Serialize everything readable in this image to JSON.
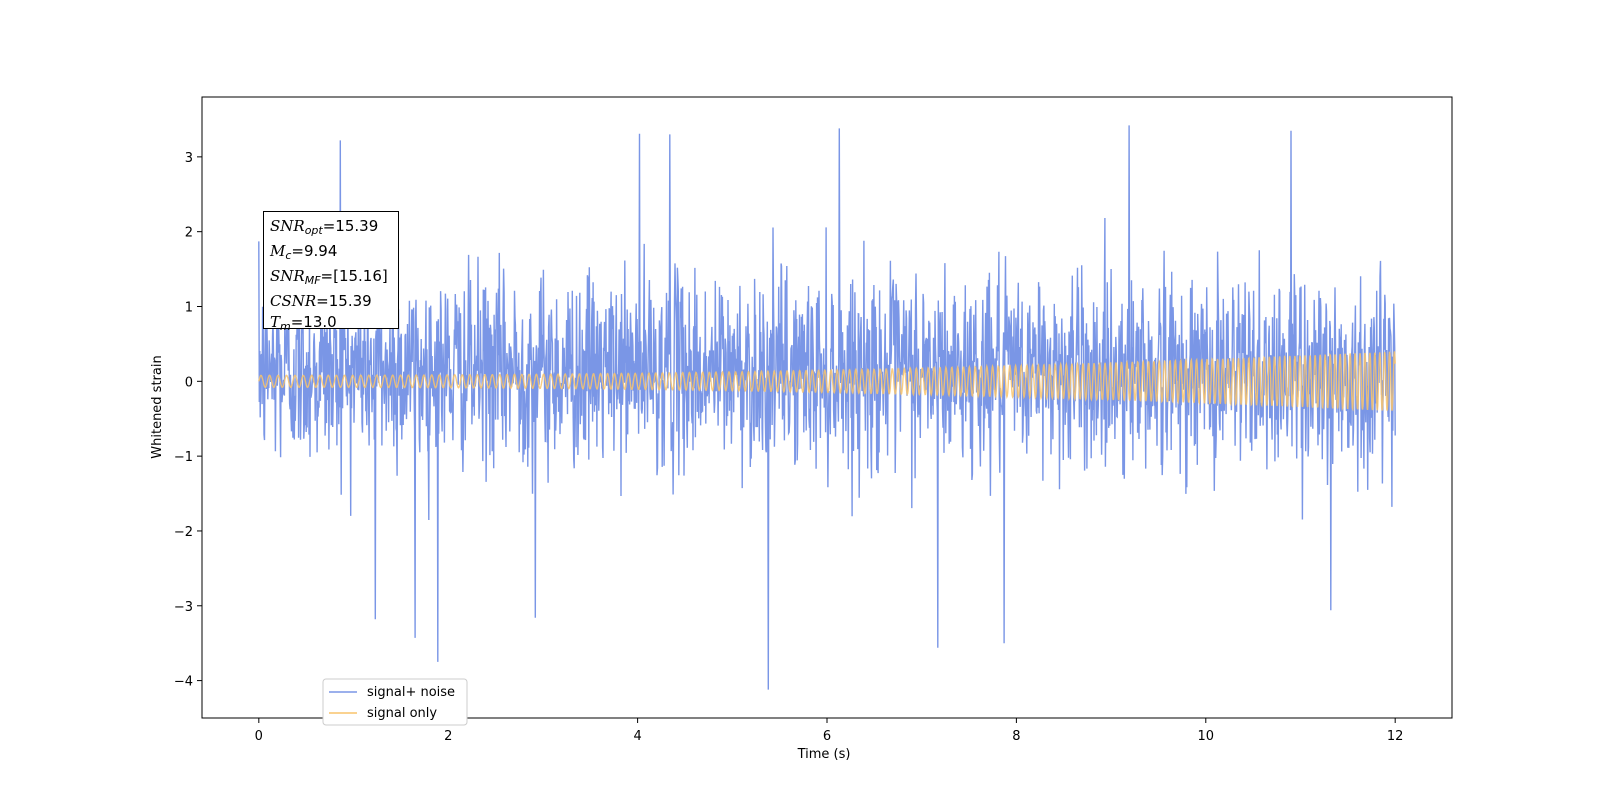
{
  "chart_data": {
    "type": "line",
    "title": "",
    "xlabel": "Time (s)",
    "ylabel": "Whitened strain",
    "xlim": [
      -0.6,
      12.6
    ],
    "ylim": [
      -4.5,
      3.8
    ],
    "x_ticks": [
      0,
      2,
      4,
      6,
      8,
      10,
      12
    ],
    "x_tick_labels": [
      "0",
      "2",
      "4",
      "6",
      "8",
      "10",
      "12"
    ],
    "y_ticks": [
      -4,
      -3,
      -2,
      -1,
      0,
      1,
      2,
      3
    ],
    "y_tick_labels": [
      "−4",
      "−3",
      "−2",
      "−1",
      "0",
      "1",
      "2",
      "3"
    ],
    "grid": false,
    "legend_position": "lower-left",
    "series": [
      {
        "name": "signal+ noise",
        "color": "#7a96e6",
        "description_values": {
          "x_range": [
            0,
            12
          ],
          "typical_envelope": [
            -1.5,
            2.0
          ],
          "peaks": [
            {
              "x": 0.86,
              "y": 3.22
            },
            {
              "x": 6.13,
              "y": 3.38
            },
            {
              "x": 9.19,
              "y": 3.42
            },
            {
              "x": 10.9,
              "y": 3.35
            },
            {
              "x": 4.02,
              "y": 3.31
            },
            {
              "x": 4.34,
              "y": 3.3
            }
          ],
          "troughs": [
            {
              "x": 5.38,
              "y": -4.12
            },
            {
              "x": 1.89,
              "y": -3.75
            },
            {
              "x": 1.65,
              "y": -3.43
            },
            {
              "x": 7.17,
              "y": -3.56
            },
            {
              "x": 7.87,
              "y": -3.5
            },
            {
              "x": 11.32,
              "y": -3.06
            },
            {
              "x": 1.23,
              "y": -3.18
            },
            {
              "x": 2.92,
              "y": -3.16
            }
          ]
        }
      },
      {
        "name": "signal only",
        "color": "#f9c46b",
        "description_values": {
          "x_range": [
            0,
            12
          ],
          "amplitude_start": 0.08,
          "amplitude_end": 0.4,
          "frequency_trend": "increasing"
        }
      }
    ],
    "annotations": [
      {
        "label": "SNR",
        "sub": "opt",
        "value": "=15.39"
      },
      {
        "label": "M",
        "sub": "c",
        "value": "=9.94"
      },
      {
        "label": "SNR",
        "sub": "MF",
        "value": "=[15.16]"
      },
      {
        "label": "CSNR",
        "sub": "",
        "value": "=15.39"
      },
      {
        "label": "T",
        "sub": "m",
        "value": "=13.0"
      }
    ]
  }
}
